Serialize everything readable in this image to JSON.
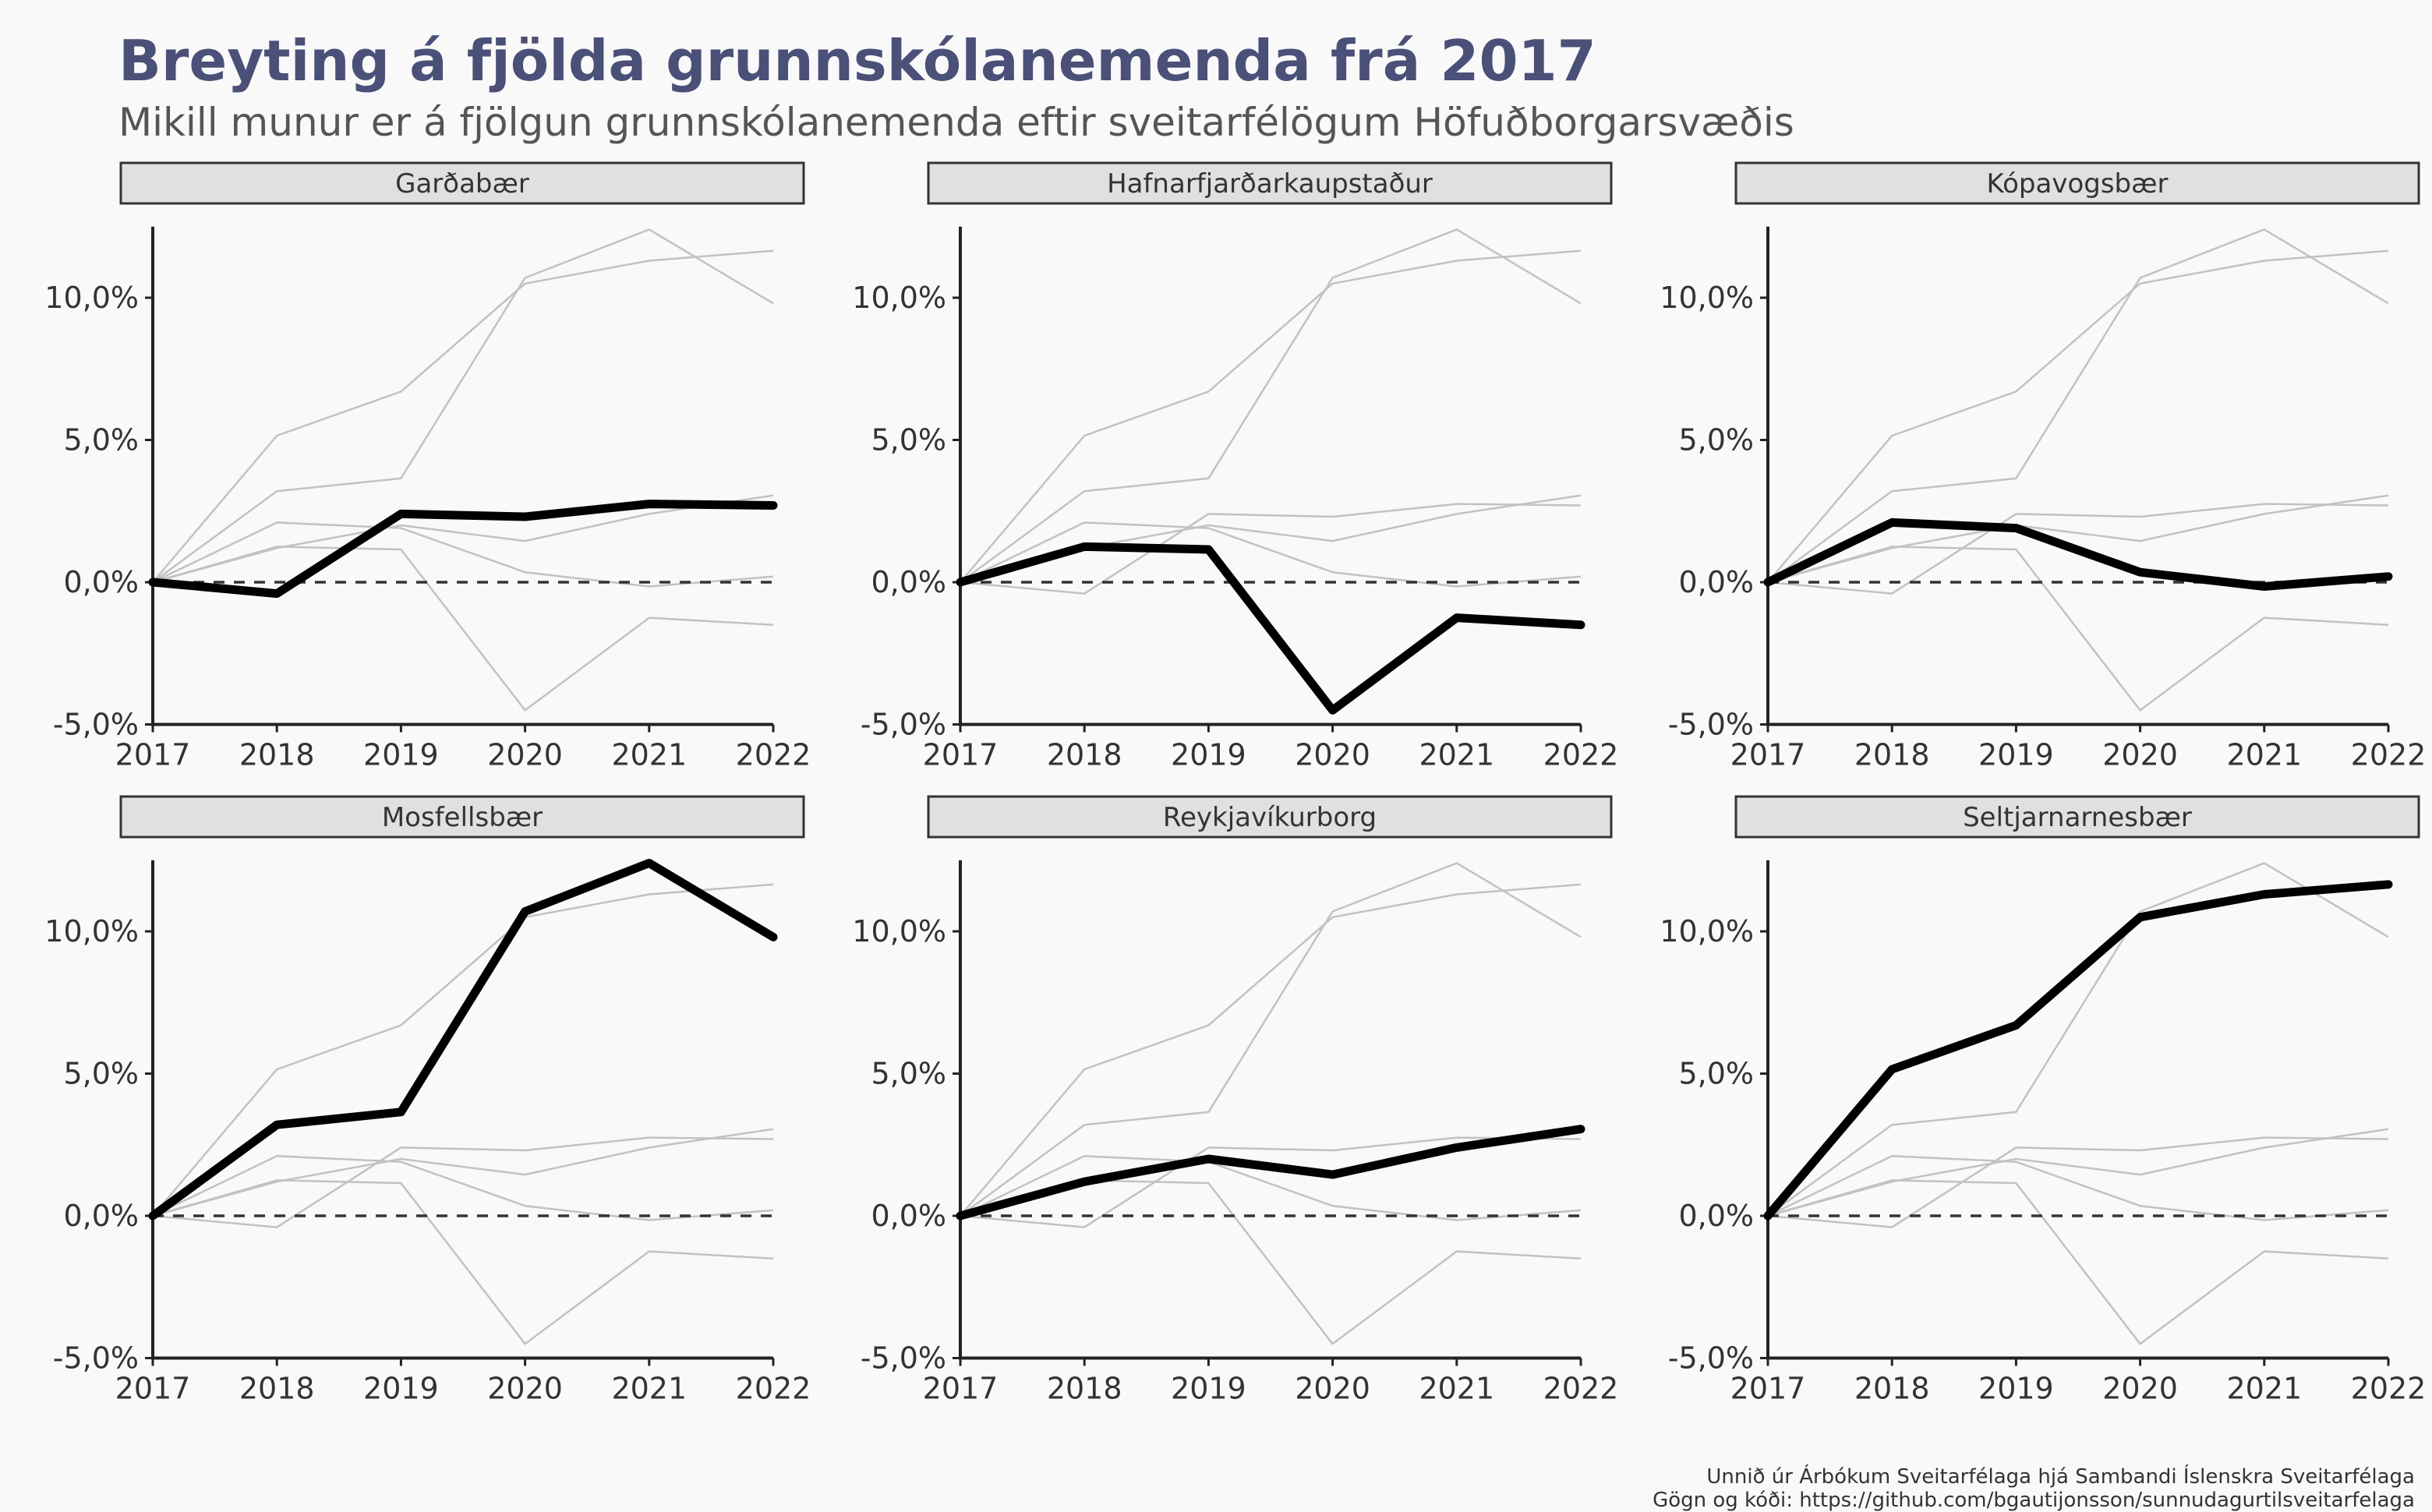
{
  "title": "Breyting á fjölda grunnskólanemenda frá 2017",
  "subtitle": "Mikill munur er á fjölgun grunnskólanemenda eftir sveitarfélögum Höfuðborgarsvæðis",
  "caption": {
    "line1": "Unnið úr Árbókum Sveitarfélaga hjá Sambandi Íslenskra Sveitarfélaga",
    "line2": "Gögn og kóði: https://github.com/bgautijonsson/sunnudagurtilsveitarfelaga"
  },
  "colors": {
    "highlight": "#000000",
    "background_series": "#c2c2c2",
    "strip_fill": "#e0e0e0",
    "reference_line": "#333333"
  },
  "chart_data": {
    "type": "line",
    "layout": "small-multiples",
    "x": [
      2017,
      2018,
      2019,
      2020,
      2021,
      2022
    ],
    "x_tick_labels": [
      "2017",
      "2018",
      "2019",
      "2020",
      "2021",
      "2022"
    ],
    "y_ticks": [
      -5,
      0,
      5,
      10
    ],
    "y_tick_labels": [
      "-5,0%",
      "0,0%",
      "5,0%",
      "10,0%"
    ],
    "ylim": [
      -5,
      12.5
    ],
    "ylabel": "",
    "xlabel": "",
    "reference_line": 0,
    "grid": false,
    "series": [
      {
        "name": "Garðabær",
        "values": [
          0,
          -0.4,
          2.4,
          2.3,
          2.75,
          2.7
        ]
      },
      {
        "name": "Hafnarfjarðarkaupstaður",
        "values": [
          0,
          1.25,
          1.15,
          -4.5,
          -1.25,
          -1.5
        ]
      },
      {
        "name": "Kópavogsbær",
        "values": [
          0,
          2.1,
          1.9,
          0.35,
          -0.15,
          0.2
        ]
      },
      {
        "name": "Mosfellsbær",
        "values": [
          0,
          3.2,
          3.65,
          10.7,
          12.4,
          9.8
        ]
      },
      {
        "name": "Reykjavíkurborg",
        "values": [
          0,
          1.2,
          2.0,
          1.45,
          2.4,
          3.05
        ]
      },
      {
        "name": "Seltjarnarnesbær",
        "values": [
          0,
          5.15,
          6.7,
          10.5,
          11.3,
          11.65
        ]
      }
    ]
  }
}
